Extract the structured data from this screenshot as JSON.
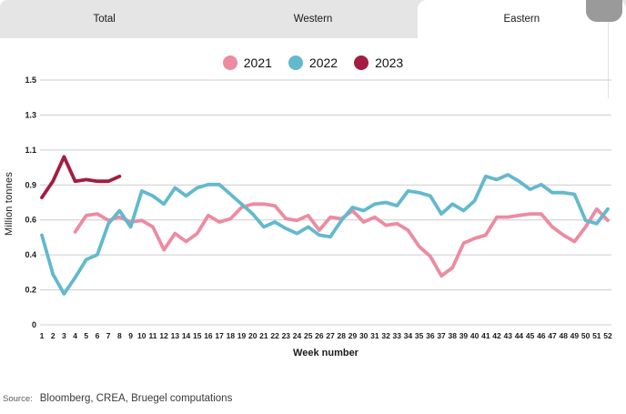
{
  "tabs": [
    {
      "label": "Total",
      "active": false
    },
    {
      "label": "Western",
      "active": false
    },
    {
      "label": "Eastern",
      "active": true
    }
  ],
  "legend": [
    {
      "label": "2021",
      "color": "#ec8ba1"
    },
    {
      "label": "2022",
      "color": "#63b9cd"
    },
    {
      "label": "2023",
      "color": "#a31d42"
    }
  ],
  "chart_data": {
    "type": "line",
    "title": "",
    "xlabel": "Week number",
    "ylabel": "Million tonnes",
    "ylim": [
      0,
      1.5
    ],
    "grid": true,
    "legend_position": "top-center",
    "ytick_labels_top_to_bottom": [
      "1.5",
      "1.3",
      "1.1",
      "0.9",
      "0.6",
      "0.4",
      "0.2",
      "0"
    ],
    "x": [
      1,
      2,
      3,
      4,
      5,
      6,
      7,
      8,
      9,
      10,
      11,
      12,
      13,
      14,
      15,
      16,
      17,
      18,
      19,
      20,
      21,
      22,
      23,
      24,
      25,
      26,
      27,
      28,
      29,
      30,
      31,
      32,
      33,
      34,
      35,
      36,
      37,
      38,
      39,
      40,
      41,
      42,
      43,
      44,
      45,
      46,
      47,
      48,
      49,
      50,
      51,
      52
    ],
    "series": [
      {
        "name": "2021",
        "color": "#ec8ba1",
        "start_week": 4,
        "values": [
          0.57,
          0.67,
          0.68,
          0.64,
          0.66,
          0.63,
          0.64,
          0.6,
          0.46,
          0.56,
          0.51,
          0.56,
          0.67,
          0.63,
          0.65,
          0.72,
          0.74,
          0.74,
          0.73,
          0.65,
          0.64,
          0.67,
          0.58,
          0.66,
          0.65,
          0.7,
          0.63,
          0.66,
          0.61,
          0.62,
          0.58,
          0.48,
          0.42,
          0.3,
          0.35,
          0.5,
          0.53,
          0.55,
          0.66,
          0.66,
          0.67,
          0.68,
          0.68,
          0.6,
          0.55,
          0.51,
          0.6,
          0.71,
          0.64
        ]
      },
      {
        "name": "2022",
        "color": "#63b9cd",
        "start_week": 1,
        "values": [
          0.55,
          0.31,
          0.19,
          0.29,
          0.4,
          0.43,
          0.62,
          0.7,
          0.6,
          0.82,
          0.79,
          0.74,
          0.84,
          0.79,
          0.84,
          0.86,
          0.86,
          0.8,
          0.74,
          0.68,
          0.6,
          0.63,
          0.59,
          0.56,
          0.6,
          0.55,
          0.54,
          0.64,
          0.72,
          0.7,
          0.74,
          0.75,
          0.73,
          0.82,
          0.81,
          0.79,
          0.68,
          0.74,
          0.7,
          0.76,
          0.91,
          0.89,
          0.92,
          0.88,
          0.83,
          0.86,
          0.81,
          0.81,
          0.8,
          0.64,
          0.62,
          0.71
        ]
      },
      {
        "name": "2023",
        "color": "#a31d42",
        "start_week": 1,
        "values": [
          0.78,
          0.88,
          1.03,
          0.88,
          0.89,
          0.88,
          0.88,
          0.91
        ]
      }
    ]
  },
  "source": {
    "prefix": "Source:",
    "text": "Bloomberg, CREA, Bruegel computations"
  }
}
